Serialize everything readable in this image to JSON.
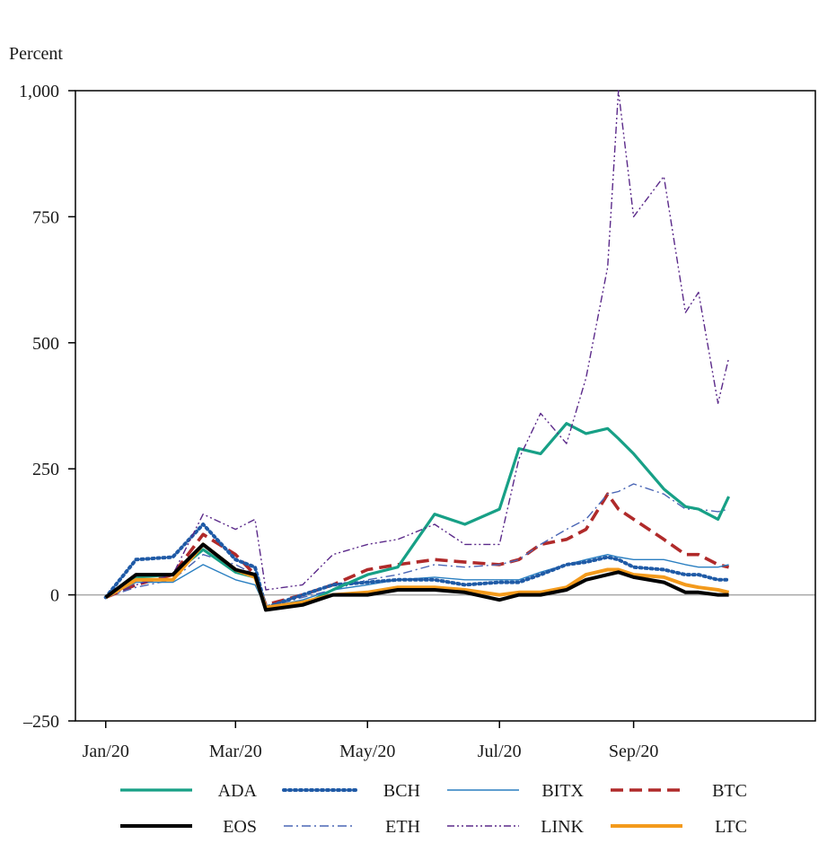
{
  "chart_data": {
    "type": "line",
    "ylabel": "Percent",
    "ylim": [
      -250,
      1000
    ],
    "yticks": [
      -250,
      0,
      250,
      500,
      750,
      1000
    ],
    "ytick_labels": [
      "–250",
      "0",
      "250",
      "500",
      "750",
      "1,000"
    ],
    "xlim": [
      "2019-12-18",
      "2020-11-24"
    ],
    "xticks": [
      "2020-01-01",
      "2020-03-01",
      "2020-05-01",
      "2020-07-01",
      "2020-09-01"
    ],
    "xtick_labels": [
      "Jan/20",
      "Mar/20",
      "May/20",
      "Jul/20",
      "Sep/20"
    ],
    "zero_line": true,
    "grid": false,
    "legend_position": "bottom",
    "x": [
      "2020-01-01",
      "2020-01-15",
      "2020-02-01",
      "2020-02-15",
      "2020-03-01",
      "2020-03-10",
      "2020-03-15",
      "2020-04-01",
      "2020-04-15",
      "2020-05-01",
      "2020-05-15",
      "2020-06-01",
      "2020-06-15",
      "2020-07-01",
      "2020-07-10",
      "2020-07-20",
      "2020-08-01",
      "2020-08-10",
      "2020-08-20",
      "2020-08-25",
      "2020-09-01",
      "2020-09-15",
      "2020-09-25",
      "2020-10-01",
      "2020-10-10",
      "2020-10-15"
    ],
    "series": [
      {
        "name": "ADA",
        "color": "#17a086",
        "style": "solid",
        "width": 3.2,
        "values": [
          -5,
          35,
          40,
          90,
          45,
          35,
          -30,
          -20,
          10,
          40,
          55,
          160,
          140,
          170,
          290,
          280,
          340,
          320,
          330,
          310,
          280,
          210,
          175,
          170,
          150,
          195
        ]
      },
      {
        "name": "BCH",
        "color": "#1f5aa6",
        "style": "dotted",
        "width": 4,
        "values": [
          -5,
          70,
          75,
          140,
          70,
          55,
          -25,
          0,
          20,
          25,
          30,
          30,
          20,
          25,
          25,
          40,
          60,
          65,
          75,
          70,
          55,
          50,
          40,
          40,
          30,
          30
        ]
      },
      {
        "name": "BITX",
        "color": "#2a7fc1",
        "style": "solid",
        "width": 1.4,
        "values": [
          -5,
          25,
          25,
          60,
          30,
          20,
          -25,
          -10,
          10,
          20,
          30,
          35,
          30,
          30,
          30,
          45,
          60,
          70,
          80,
          75,
          70,
          70,
          60,
          55,
          55,
          60
        ]
      },
      {
        "name": "BTC",
        "color": "#b02a2a",
        "style": "bigdash",
        "width": 3.6,
        "values": [
          -5,
          20,
          40,
          120,
          80,
          40,
          -20,
          0,
          20,
          50,
          60,
          70,
          65,
          60,
          70,
          100,
          110,
          130,
          200,
          170,
          150,
          110,
          80,
          80,
          60,
          55
        ]
      },
      {
        "name": "EOS",
        "color": "#000000",
        "style": "solid",
        "width": 4,
        "values": [
          -5,
          40,
          40,
          100,
          50,
          40,
          -30,
          -20,
          0,
          0,
          10,
          10,
          5,
          -10,
          0,
          0,
          10,
          30,
          40,
          45,
          35,
          25,
          5,
          5,
          0,
          0
        ]
      },
      {
        "name": "ETH",
        "color": "#4a66b5",
        "style": "dashdot",
        "width": 1.4,
        "values": [
          -5,
          15,
          30,
          80,
          60,
          40,
          -25,
          -5,
          10,
          30,
          40,
          60,
          55,
          60,
          70,
          100,
          130,
          150,
          200,
          205,
          220,
          200,
          170,
          170,
          165,
          170
        ]
      },
      {
        "name": "LINK",
        "color": "#5b2a8a",
        "style": "dashdotdot",
        "width": 1.4,
        "values": [
          -5,
          20,
          40,
          160,
          130,
          150,
          10,
          20,
          80,
          100,
          110,
          140,
          100,
          100,
          270,
          360,
          300,
          430,
          650,
          1000,
          750,
          830,
          560,
          600,
          380,
          470
        ]
      },
      {
        "name": "LTC",
        "color": "#f39a1c",
        "style": "solid",
        "width": 4,
        "values": [
          -5,
          30,
          30,
          100,
          50,
          35,
          -25,
          -15,
          0,
          5,
          15,
          15,
          10,
          0,
          5,
          5,
          15,
          40,
          50,
          50,
          40,
          35,
          20,
          15,
          10,
          5
        ]
      }
    ]
  }
}
